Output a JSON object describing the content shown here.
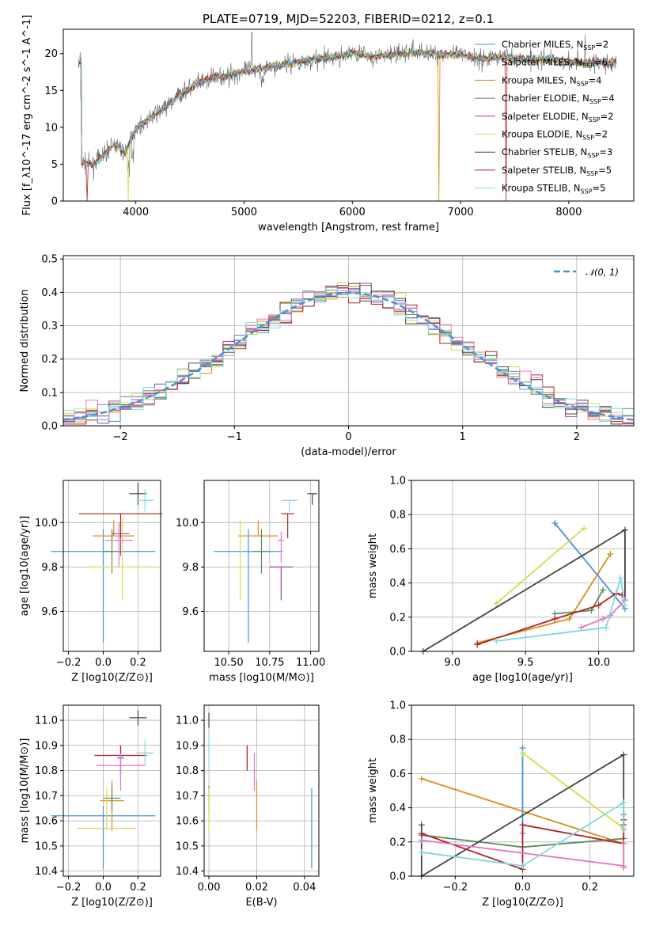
{
  "chart_data": [
    {
      "type": "line",
      "title": "PLATE=0719, MJD=52203, FIBERID=0212, z=0.1",
      "xlabel": "wavelength [Angstrom, rest frame]",
      "ylabel": "Flux [f_λ10^-17 erg cm^-2 s^-1 A^-1]",
      "xlim": [
        3330,
        8600
      ],
      "ylim": [
        0,
        23.3
      ],
      "xticks": [
        "4000",
        "5000",
        "6000",
        "7000",
        "8000"
      ],
      "yticks": [
        "0",
        "5",
        "10",
        "15",
        "20"
      ],
      "grid": false,
      "legend_position": "top-right",
      "spectrum_approx": {
        "x": [
          3500,
          3600,
          3700,
          3800,
          3900,
          4000,
          4100,
          4200,
          4300,
          4400,
          4500,
          4600,
          4800,
          5000,
          5200,
          5400,
          5600,
          5800,
          6000,
          6200,
          6400,
          6600,
          6800,
          7000,
          7200,
          7400,
          7600,
          7800,
          8000,
          8200,
          8400
        ],
        "y": [
          5.3,
          4.9,
          6.2,
          7.8,
          6.5,
          9.9,
          10.9,
          12.0,
          13.0,
          14.4,
          15.3,
          16.2,
          17.0,
          17.6,
          18.1,
          18.6,
          19.1,
          19.4,
          20.1,
          19.6,
          19.9,
          20.2,
          19.9,
          19.8,
          19.3,
          19.6,
          19.2,
          19.3,
          18.9,
          18.8,
          18.7
        ]
      },
      "series": [
        {
          "name": "Chabrier MILES, N_SSP=2",
          "color": "#4a90d9"
        },
        {
          "name": "Salpeter MILES, N_SSP=6",
          "color": "#e0e0e0"
        },
        {
          "name": "Kroupa MILES, N_SSP=4",
          "color": "#d98c1a"
        },
        {
          "name": "Chabrier ELODIE, N_SSP=4",
          "color": "#5c8a5c"
        },
        {
          "name": "Salpeter ELODIE, N_SSP=2",
          "color": "#9b3fb5"
        },
        {
          "name": "Kroupa ELODIE, N_SSP=2",
          "color": "#d4dc4a"
        },
        {
          "name": "Chabrier STELIB, N_SSP=3",
          "color": "#444444"
        },
        {
          "name": "Salpeter STELIB, N_SSP=5",
          "color": "#b22222"
        },
        {
          "name": "Kroupa STELIB, N_SSP=5",
          "color": "#80d8e0"
        }
      ],
      "legend_labels": [
        "Chabrier MILES, N_SSP=2",
        "Salpeter MILES, N_SSP=6",
        "Kroupa MILES, N_SSP=4",
        "Chabrier ELODIE, N_SSP=4",
        "Salpeter ELODIE, N_SSP=2",
        "Kroupa ELODIE, N_SSP=2",
        "Chabrier STELIB, N_SSP=3",
        "Salpeter STELIB, N_SSP=5",
        "Kroupa STELIB, N_SSP=5"
      ]
    },
    {
      "type": "line",
      "xlabel": "(data-model)/error",
      "ylabel": "Normed distribution",
      "xlim": [
        -2.5,
        2.5
      ],
      "ylim": [
        0,
        0.51
      ],
      "xticks": [
        "−2",
        "−1",
        "0",
        "1",
        "2"
      ],
      "yticks": [
        "0.0",
        "0.1",
        "0.2",
        "0.3",
        "0.4",
        "0.5"
      ],
      "grid": true,
      "legend_position": "top-right",
      "series": [
        {
          "name": "N(0,1)",
          "color": "#4a90d9",
          "style": "dashed",
          "mu": 0,
          "sigma": 1
        }
      ]
    },
    {
      "type": "scatter",
      "xlabel": "Z [log10(Z/Z⊙)]",
      "ylabel": "age [log10(age/yr)]",
      "xlim": [
        -0.23,
        0.33
      ],
      "ylim": [
        9.42,
        10.19
      ],
      "xticks": [
        "−0.2",
        "0.0",
        "0.2"
      ],
      "yticks": [
        "9.6",
        "9.8",
        "10.0"
      ],
      "grid": true,
      "errorbars": [
        {
          "x": 0.0,
          "xerr": 0.3,
          "y": 9.87,
          "yerr": [
            0.41,
            0.1
          ],
          "color": "#4a90d9"
        },
        {
          "x": 0.06,
          "xerr": 0.12,
          "y": 9.94,
          "yerr": [
            0.0,
            0.07
          ],
          "color": "#d98c1a"
        },
        {
          "x": 0.05,
          "xerr": 0.05,
          "y": 9.87,
          "yerr": [
            0.1,
            0.1
          ],
          "color": "#5c8a5c"
        },
        {
          "x": 0.1,
          "xerr": 0.05,
          "y": 9.95,
          "yerr": [
            0.1,
            0.05
          ],
          "color": "#9b3fb5"
        },
        {
          "x": 0.11,
          "xerr": 0.2,
          "y": 9.8,
          "yerr": [
            0.15,
            0.22
          ],
          "color": "#d4dc4a"
        },
        {
          "x": 0.2,
          "xerr": 0.05,
          "y": 10.13,
          "yerr": [
            0.05,
            0.05
          ],
          "color": "#444444"
        },
        {
          "x": 0.1,
          "xerr": 0.24,
          "y": 10.04,
          "yerr": [
            0.11,
            0.0
          ],
          "color": "#b22222"
        },
        {
          "x": 0.09,
          "xerr": 0.08,
          "y": 9.92,
          "yerr": [
            0.12,
            0.08
          ],
          "color": "#e377c2"
        },
        {
          "x": 0.24,
          "xerr": 0.05,
          "y": 10.1,
          "yerr": [
            0.05,
            0.05
          ],
          "color": "#80d8e0"
        }
      ]
    },
    {
      "type": "scatter",
      "xlabel": "mass [log10(M/M⊙)]",
      "ylabel": "",
      "xlim": [
        10.35,
        11.05
      ],
      "ylim": [
        9.42,
        10.19
      ],
      "xticks": [
        "10.50",
        "10.75",
        "11.00"
      ],
      "yticks": [
        "9.6",
        "9.8",
        "10.0"
      ],
      "grid": true,
      "errorbars": [
        {
          "x": 10.62,
          "xerr": 0.21,
          "y": 9.87,
          "yerr": [
            0.41,
            0.1
          ],
          "color": "#4a90d9"
        },
        {
          "x": 10.68,
          "xerr": 0.12,
          "y": 9.94,
          "yerr": [
            0.0,
            0.07
          ],
          "color": "#d98c1a"
        },
        {
          "x": 10.7,
          "xerr": 0.05,
          "y": 9.87,
          "yerr": [
            0.1,
            0.1
          ],
          "color": "#5c8a5c"
        },
        {
          "x": 10.82,
          "xerr": 0.07,
          "y": 9.8,
          "yerr": [
            0.15,
            0.0
          ],
          "color": "#9b3fb5"
        },
        {
          "x": 10.57,
          "xerr": 0.03,
          "y": 9.8,
          "yerr": [
            0.15,
            0.21
          ],
          "color": "#d4dc4a"
        },
        {
          "x": 11.01,
          "xerr": 0.03,
          "y": 10.13,
          "yerr": [
            0.05,
            0.0
          ],
          "color": "#444444"
        },
        {
          "x": 10.86,
          "xerr": 0.04,
          "y": 10.04,
          "yerr": [
            0.11,
            0.0
          ],
          "color": "#b22222"
        },
        {
          "x": 10.82,
          "xerr": 0.02,
          "y": 9.92,
          "yerr": [
            0.1,
            0.04
          ],
          "color": "#e377c2"
        },
        {
          "x": 10.87,
          "xerr": 0.05,
          "y": 10.1,
          "yerr": [
            0.05,
            0.0
          ],
          "color": "#80d8e0"
        }
      ]
    },
    {
      "type": "line",
      "xlabel": "age [log10(age/yr)]",
      "ylabel": "mass weight",
      "xlim": [
        8.72,
        10.24
      ],
      "ylim": [
        0,
        1.0
      ],
      "xticks": [
        "9.0",
        "9.5",
        "10.0"
      ],
      "yticks": [
        "0.0",
        "0.2",
        "0.4",
        "0.6",
        "0.8",
        "1.0"
      ],
      "grid": true,
      "series": [
        {
          "name": "Chabrier MILES",
          "color": "#4a90d9",
          "x": [
            9.7,
            10.18
          ],
          "y": [
            0.75,
            0.25
          ]
        },
        {
          "name": "Kroupa MILES",
          "color": "#d98c1a",
          "x": [
            9.17,
            9.8,
            10.08
          ],
          "y": [
            0.05,
            0.19,
            0.57
          ]
        },
        {
          "name": "Chabrier ELODIE",
          "color": "#5c8a5c",
          "x": [
            9.7,
            9.95,
            10.03
          ],
          "y": [
            0.22,
            0.24,
            0.36
          ]
        },
        {
          "name": "Kroupa ELODIE",
          "color": "#d4dc4a",
          "x": [
            9.3,
            9.9
          ],
          "y": [
            0.28,
            0.72
          ]
        },
        {
          "name": "Chabrier STELIB",
          "color": "#444444",
          "x": [
            8.8,
            10.18,
            10.18
          ],
          "y": [
            0.0,
            0.71,
            0.3
          ]
        },
        {
          "name": "Salpeter STELIB",
          "color": "#b22222",
          "x": [
            9.17,
            9.7,
            10.0,
            10.12,
            10.16
          ],
          "y": [
            0.04,
            0.19,
            0.27,
            0.34,
            0.33
          ]
        },
        {
          "name": "Salpeter MILES",
          "color": "#e377c2",
          "x": [
            9.88,
            10.03,
            10.08,
            10.18
          ],
          "y": [
            0.14,
            0.19,
            0.21,
            0.3
          ]
        },
        {
          "name": "Kroupa STELIB",
          "color": "#80d8e0",
          "x": [
            9.3,
            10.05,
            10.15,
            10.18
          ],
          "y": [
            0.06,
            0.14,
            0.43,
            0.27
          ]
        }
      ]
    },
    {
      "type": "scatter",
      "xlabel": "Z [log10(Z/Z⊙)]",
      "ylabel": "mass [log10(M/M⊙)]",
      "xlim": [
        -0.23,
        0.33
      ],
      "ylim": [
        10.38,
        11.06
      ],
      "xticks": [
        "−0.2",
        "0.0",
        "0.2"
      ],
      "yticks": [
        "10.4",
        "10.5",
        "10.6",
        "10.7",
        "10.8",
        "10.9",
        "11.0"
      ],
      "grid": true,
      "errorbars": [
        {
          "x": 0.0,
          "xerr": 0.3,
          "y": 10.62,
          "yerr": [
            0.21,
            0.04
          ],
          "color": "#4a90d9"
        },
        {
          "x": 0.05,
          "xerr": 0.07,
          "y": 10.68,
          "yerr": [
            0.12,
            0.08
          ],
          "color": "#d98c1a"
        },
        {
          "x": 0.05,
          "xerr": 0.05,
          "y": 10.69,
          "yerr": [
            0.05,
            0.05
          ],
          "color": "#5c8a5c"
        },
        {
          "x": 0.1,
          "xerr": 0.02,
          "y": 10.85,
          "yerr": [
            0.05,
            0.05
          ],
          "color": "#9b3fb5"
        },
        {
          "x": 0.02,
          "xerr": 0.17,
          "y": 10.57,
          "yerr": [
            0.0,
            0.16
          ],
          "color": "#d4dc4a"
        },
        {
          "x": 0.2,
          "xerr": 0.05,
          "y": 11.01,
          "yerr": [
            0.03,
            0.03
          ],
          "color": "#444444"
        },
        {
          "x": 0.1,
          "xerr": 0.15,
          "y": 10.86,
          "yerr": [
            0.08,
            0.04
          ],
          "color": "#b22222"
        },
        {
          "x": 0.1,
          "xerr": 0.14,
          "y": 10.82,
          "yerr": [
            0.1,
            0.05
          ],
          "color": "#e377c2"
        },
        {
          "x": 0.24,
          "xerr": 0.05,
          "y": 10.87,
          "yerr": [
            0.05,
            0.05
          ],
          "color": "#80d8e0"
        }
      ]
    },
    {
      "type": "scatter",
      "xlabel": "E(B-V)",
      "ylabel": "",
      "xlim": [
        -0.002,
        0.046
      ],
      "ylim": [
        10.38,
        11.06
      ],
      "xticks": [
        "0.00",
        "0.02",
        "0.04"
      ],
      "yticks": [
        "10.4",
        "10.5",
        "10.6",
        "10.7",
        "10.8",
        "10.9",
        "11.0"
      ],
      "grid": true,
      "errorbars": [
        {
          "x": 0.043,
          "y": 10.62,
          "yerr": [
            0.21,
            0.11
          ],
          "color": "#4a90d9"
        },
        {
          "x": 0.02,
          "y": 10.68,
          "yerr": [
            0.12,
            0.08
          ],
          "color": "#d98c1a"
        },
        {
          "x": 0.0,
          "y": 10.69,
          "yerr": [
            0.05,
            0.05
          ],
          "color": "#5c8a5c"
        },
        {
          "x": 0.016,
          "y": 10.85,
          "yerr": [
            0.05,
            0.05
          ],
          "color": "#9b3fb5"
        },
        {
          "x": 0.0,
          "y": 10.57,
          "yerr": [
            0.02,
            0.16
          ],
          "color": "#d4dc4a"
        },
        {
          "x": 0.0,
          "y": 11.0,
          "yerr": [
            0.03,
            0.03
          ],
          "color": "#444444"
        },
        {
          "x": 0.016,
          "y": 10.85,
          "yerr": [
            0.05,
            0.05
          ],
          "color": "#b22222"
        },
        {
          "x": 0.019,
          "y": 10.82,
          "yerr": [
            0.1,
            0.05
          ],
          "color": "#e377c2"
        },
        {
          "x": 0.0,
          "y": 10.87,
          "yerr": [
            0.05,
            0.08
          ],
          "color": "#80d8e0"
        }
      ]
    },
    {
      "type": "line",
      "xlabel": "Z [log10(Z/Z⊙)]",
      "ylabel": "mass weight",
      "xlim": [
        -0.33,
        0.33
      ],
      "ylim": [
        0,
        1.0
      ],
      "xticks": [
        "−0.2",
        "0.0",
        "0.2"
      ],
      "yticks": [
        "0.0",
        "0.2",
        "0.4",
        "0.6",
        "0.8",
        "1.0"
      ],
      "grid": true,
      "series": [
        {
          "name": "Chabrier MILES",
          "color": "#4a90d9",
          "x": [
            0.0,
            0.0
          ],
          "y": [
            0.75,
            0.25
          ]
        },
        {
          "name": "Kroupa MILES",
          "color": "#d98c1a",
          "x": [
            -0.3,
            0.3,
            0.3
          ],
          "y": [
            0.57,
            0.19,
            0.05
          ]
        },
        {
          "name": "Chabrier ELODIE",
          "color": "#5c8a5c",
          "x": [
            -0.3,
            0.0,
            0.3,
            0.3
          ],
          "y": [
            0.24,
            0.17,
            0.22,
            0.36
          ]
        },
        {
          "name": "Kroupa ELODIE",
          "color": "#d4dc4a",
          "x": [
            0.0,
            0.3
          ],
          "y": [
            0.72,
            0.28
          ]
        },
        {
          "name": "Chabrier STELIB",
          "color": "#444444",
          "x": [
            -0.3,
            -0.3,
            0.3,
            0.3
          ],
          "y": [
            0.3,
            0.0,
            0.71,
            0.3
          ]
        },
        {
          "name": "Salpeter STELIB",
          "color": "#b22222",
          "x": [
            -0.3,
            0.0,
            0.0,
            0.3,
            0.3
          ],
          "y": [
            0.25,
            0.04,
            0.3,
            0.19,
            0.33
          ]
        },
        {
          "name": "Salpeter MILES",
          "color": "#e377c2",
          "x": [
            -0.3,
            0.3,
            0.3
          ],
          "y": [
            0.21,
            0.06,
            0.19
          ]
        },
        {
          "name": "Kroupa STELIB",
          "color": "#80d8e0",
          "x": [
            -0.3,
            0.0,
            0.3,
            0.3
          ],
          "y": [
            0.14,
            0.06,
            0.43,
            0.27
          ]
        }
      ]
    }
  ]
}
